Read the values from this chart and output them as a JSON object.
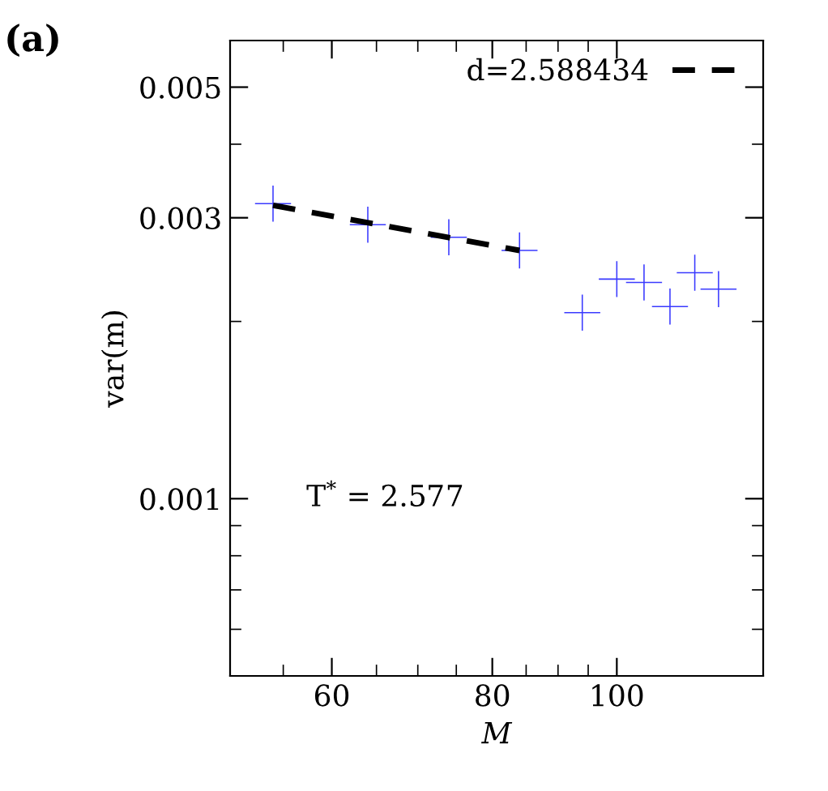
{
  "chart_data": {
    "type": "scatter",
    "xlabel": "M",
    "ylabel": "var(m)",
    "log": "xy",
    "annotations": [
      "(a)",
      "T$^{*}$ = 2.577"
    ],
    "xlim": [
      50,
      130
    ],
    "ylim": [
      0.0005,
      0.006
    ],
    "xticks": [
      {
        "value": 55,
        "label": null
      },
      60,
      {
        "value": 65,
        "label": null
      },
      {
        "value": 70,
        "label": null
      },
      {
        "value": 75,
        "label": null
      },
      80,
      {
        "value": 85,
        "label": null
      },
      {
        "value": 90,
        "label": null
      },
      {
        "value": 95,
        "label": null
      },
      100
    ],
    "yticks": [
      {
        "value": 0.0006,
        "label": null
      },
      {
        "value": 0.0007,
        "label": null
      },
      {
        "value": 0.0008,
        "label": null
      },
      {
        "value": 0.0009,
        "label": null
      },
      0.001,
      {
        "value": 0.002,
        "label": null
      },
      0.003,
      {
        "value": 0.004,
        "label": null
      },
      0.005
    ],
    "grid": false,
    "legend": "top right",
    "series": [
      {
        "color": "#3a3aff",
        "marker": "cross",
        "x": [
          54,
          64,
          74,
          84,
          94,
          100,
          105,
          110,
          115,
          120
        ],
        "values": [
          0.00317,
          0.00292,
          0.00278,
          0.00264,
          0.00207,
          0.00236,
          0.00233,
          0.00212,
          0.00242,
          0.00227
        ]
      },
      {
        "type": "line",
        "name": "d=2.588434",
        "color": "#000000",
        "line_style": "dashed",
        "marker": "none",
        "x": [
          54,
          84
        ],
        "values": [
          0.00315,
          0.00264
        ]
      }
    ]
  }
}
